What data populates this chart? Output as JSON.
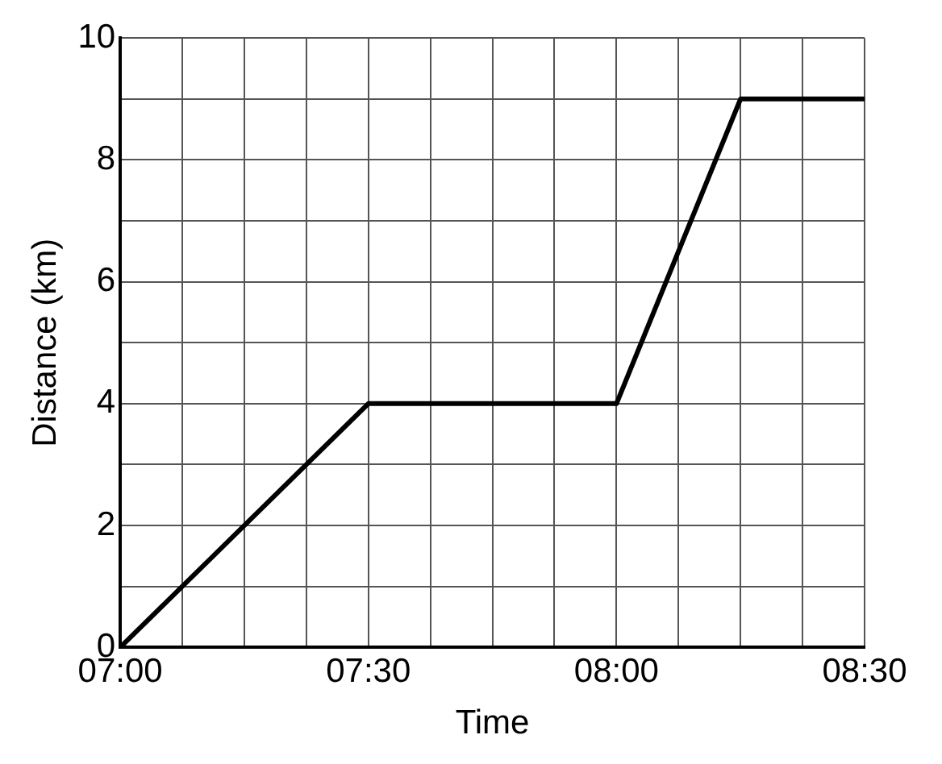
{
  "chart_data": {
    "type": "line",
    "xlabel": "Time",
    "ylabel": "Distance (km)",
    "x": [
      7,
      7.5,
      8,
      8.25,
      8.5
    ],
    "series": [
      {
        "color": "#000000",
        "values": [
          0,
          4,
          4,
          9,
          9
        ]
      }
    ],
    "xlim": [
      7,
      8.5
    ],
    "xticks": [
      {
        "value": 7,
        "label": "07:00"
      },
      {
        "value": 7.125,
        "label": null
      },
      {
        "value": 7.25,
        "label": null
      },
      {
        "value": 7.375,
        "label": null
      },
      {
        "value": 7.5,
        "label": "07:30"
      },
      {
        "value": 7.625,
        "label": null
      },
      {
        "value": 7.75,
        "label": null
      },
      {
        "value": 7.875,
        "label": null
      },
      {
        "value": 8,
        "label": "08:00"
      },
      {
        "value": 8.125,
        "label": null
      },
      {
        "value": 8.25,
        "label": null
      },
      {
        "value": 8.375,
        "label": null
      },
      {
        "value": 8.5,
        "label": "08:30"
      }
    ],
    "ylim": [
      0,
      10
    ],
    "yticks": [
      0,
      {
        "value": 1,
        "label": null
      },
      2,
      {
        "value": 3,
        "label": null
      },
      4,
      {
        "value": 5,
        "label": null
      },
      6,
      {
        "value": 7,
        "label": null
      },
      8,
      {
        "value": 9,
        "label": null
      },
      10
    ],
    "grid": true,
    "legend": false,
    "marker": "none",
    "line_style": "solid"
  }
}
